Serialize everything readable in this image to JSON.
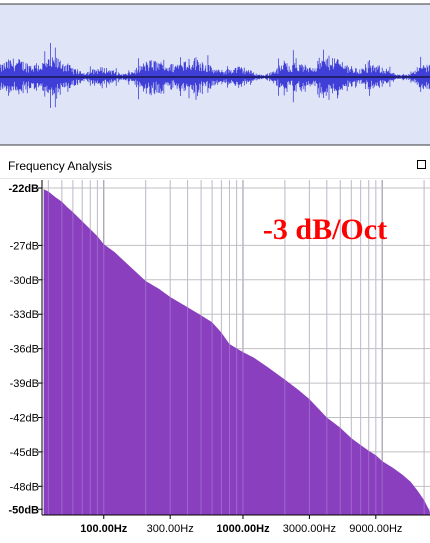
{
  "window": {
    "title": "Frequency Analysis",
    "maximize_icon": "maximize-icon"
  },
  "colors": {
    "waveform": "#3f3fd8",
    "waveform_bg": "#dfe5f7",
    "waveform_axis": "#000000",
    "spectrum_fill": "#8a3fbf",
    "grid": "#c0c0c0",
    "annotation": "#ff0000"
  },
  "chart_data": {
    "type": "area",
    "annotation": "-3 dB/Oct",
    "xscale": "log",
    "xlim": [
      36,
      22050
    ],
    "ylim": [
      -50.5,
      -21.3
    ],
    "y_ticks": [
      {
        "value": -22,
        "label": "-22dB"
      },
      {
        "value": -27,
        "label": "-27dB"
      },
      {
        "value": -30,
        "label": "-30dB"
      },
      {
        "value": -33,
        "label": "-33dB"
      },
      {
        "value": -36,
        "label": "-36dB"
      },
      {
        "value": -39,
        "label": "-39dB"
      },
      {
        "value": -42,
        "label": "-42dB"
      },
      {
        "value": -45,
        "label": "-45dB"
      },
      {
        "value": -48,
        "label": "-48dB"
      },
      {
        "value": -50,
        "label": "-50dB"
      }
    ],
    "x_ticks": [
      {
        "value": 100,
        "label": "100.00Hz",
        "bold": true
      },
      {
        "value": 300,
        "label": "300.00Hz",
        "bold": false
      },
      {
        "value": 1000,
        "label": "1000.00Hz",
        "bold": true
      },
      {
        "value": 3000,
        "label": "3000.00Hz",
        "bold": false
      },
      {
        "value": 9000,
        "label": "9000.00Hz",
        "bold": false
      }
    ],
    "series": [
      {
        "x": [
          37,
          40,
          45,
          50,
          55,
          60,
          70,
          80,
          90,
          100,
          120,
          150,
          200,
          250,
          300,
          400,
          500,
          600,
          700,
          800,
          1000,
          1200,
          1500,
          2000,
          2500,
          3000,
          4000,
          5000,
          6000,
          7000,
          8000,
          9000,
          10000,
          12000,
          14000,
          16000,
          18000,
          20000,
          22000
        ],
        "y": [
          -22.1,
          -22.3,
          -22.8,
          -23.2,
          -23.7,
          -24.1,
          -24.9,
          -25.6,
          -26.2,
          -26.9,
          -27.6,
          -28.7,
          -30.1,
          -30.8,
          -31.5,
          -32.4,
          -33.1,
          -33.7,
          -34.6,
          -35.6,
          -36.3,
          -36.8,
          -37.6,
          -38.7,
          -39.6,
          -40.4,
          -42.0,
          -42.9,
          -43.8,
          -44.4,
          -44.9,
          -45.3,
          -45.8,
          -46.4,
          -47.0,
          -47.6,
          -48.4,
          -49.2,
          -50.2
        ]
      }
    ]
  }
}
